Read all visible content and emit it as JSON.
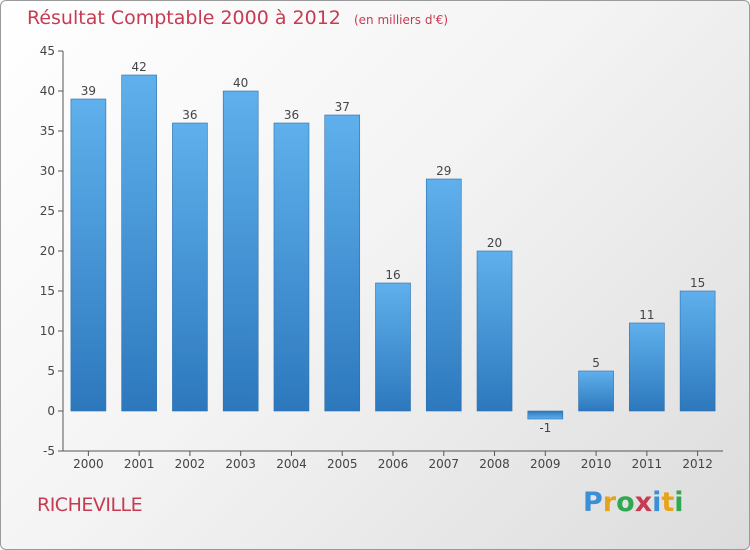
{
  "title": "Résultat Comptable 2000 à 2012",
  "subtitle": "(en milliers d'€)",
  "commune": "RICHEVILLE",
  "brand": {
    "letters": [
      "P",
      "r",
      "o",
      "x",
      "i",
      "t",
      "i"
    ],
    "colors": [
      "#3b8fd6",
      "#e8a31c",
      "#2fa84f",
      "#c73b52",
      "#3b8fd6",
      "#e8a31c",
      "#2fa84f"
    ]
  },
  "colors": {
    "bar": "#4a9fe0",
    "title": "#c73b52",
    "axis": "#555555"
  },
  "chart_data": {
    "type": "bar",
    "title": "Résultat Comptable 2000 à 2012",
    "subtitle": "(en milliers d'€)",
    "categories": [
      "2000",
      "2001",
      "2002",
      "2003",
      "2004",
      "2005",
      "2006",
      "2007",
      "2008",
      "2009",
      "2010",
      "2011",
      "2012"
    ],
    "values": [
      39,
      42,
      36,
      40,
      36,
      37,
      16,
      29,
      20,
      -1,
      5,
      11,
      15
    ],
    "value_labels": [
      "39",
      "42",
      "36",
      "40",
      "36",
      "37",
      "16",
      "29",
      "20",
      "-1",
      "5",
      "11",
      "15"
    ],
    "ylim": [
      -5,
      45
    ],
    "yticks": [
      "-5",
      "0",
      "5",
      "10",
      "15",
      "20",
      "25",
      "30",
      "35",
      "40",
      "45"
    ],
    "grid": false,
    "legend": "none"
  }
}
